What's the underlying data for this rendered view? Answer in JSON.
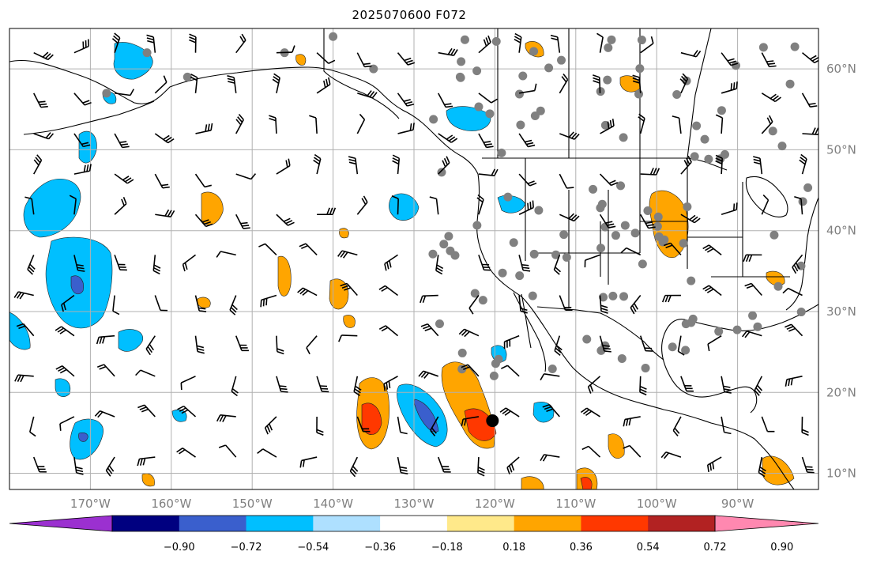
{
  "title": "2025070600 F072",
  "map": {
    "lat_labels": [
      "60°N",
      "50°N",
      "40°N",
      "30°N",
      "20°N",
      "10°N"
    ],
    "lat_values": [
      60,
      50,
      40,
      30,
      20,
      10
    ],
    "lon_labels": [
      "170°W",
      "160°W",
      "150°W",
      "140°W",
      "130°W",
      "120°W",
      "110°W",
      "100°W",
      "90°W"
    ],
    "lon_values": [
      -170,
      -160,
      -150,
      -140,
      -130,
      -120,
      -110,
      -100,
      -90
    ],
    "extent": {
      "lon_min": -180,
      "lon_max": -80,
      "lat_min": 8,
      "lat_max": 65
    },
    "marker": {
      "lon": -120.3,
      "lat": 16.5,
      "color": "#000000"
    }
  },
  "colorbar": {
    "ticks": [
      "−0.90",
      "−0.72",
      "−0.54",
      "−0.36",
      "−0.18",
      "0.18",
      "0.36",
      "0.54",
      "0.72",
      "0.90"
    ],
    "colors": [
      "#9b30d0",
      "#000080",
      "#3a5fcd",
      "#00bfff",
      "#aee0ff",
      "#ffffff",
      "#ffe98a",
      "#ffa500",
      "#ff3800",
      "#b22222",
      "#ff88b0"
    ],
    "extend": "both"
  }
}
